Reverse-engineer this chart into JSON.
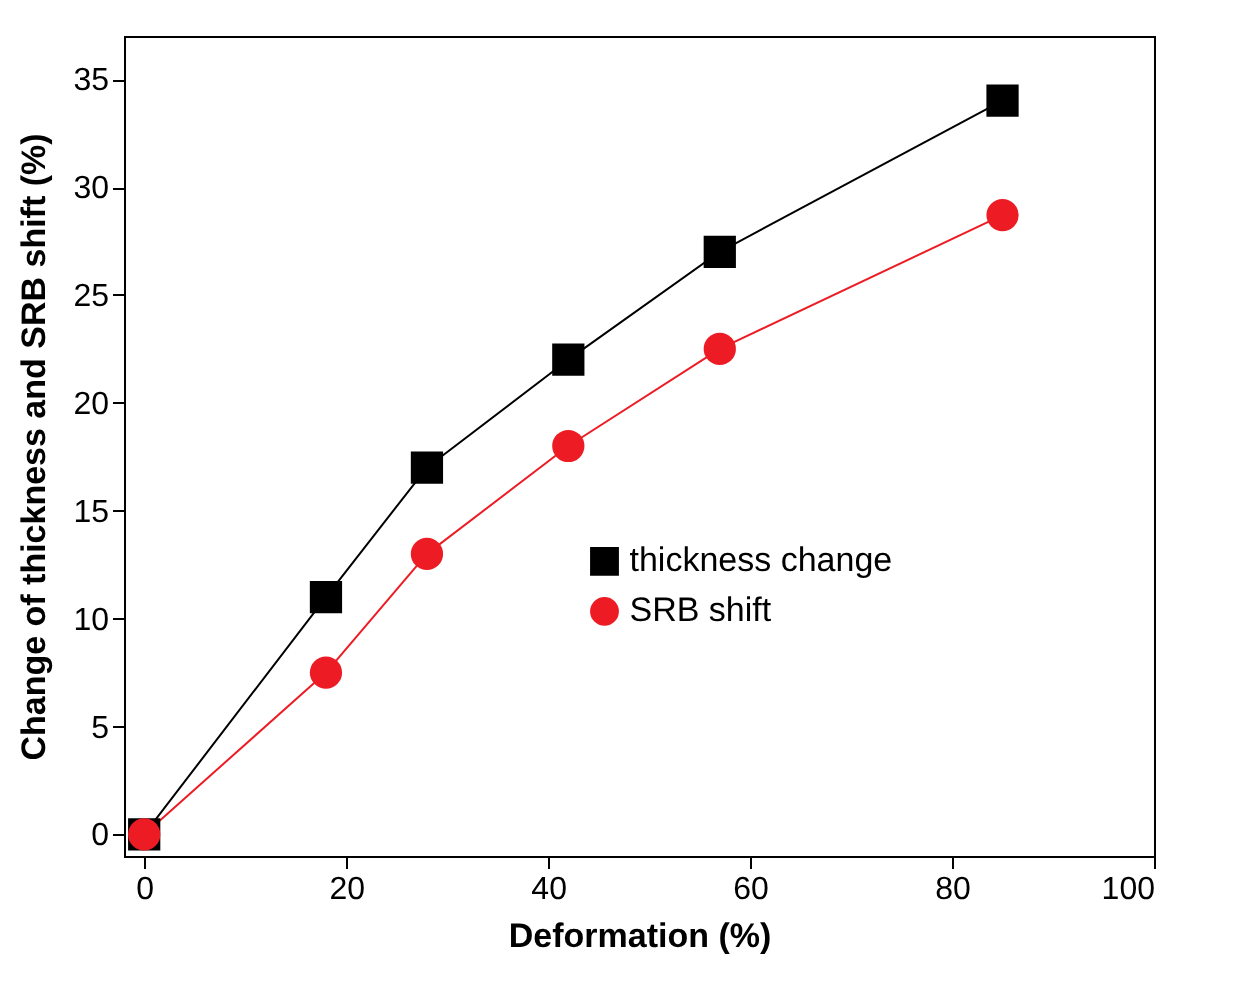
{
  "chart_data": {
    "type": "line",
    "xlabel": "Deformation (%)",
    "ylabel": "Change of thickness and SRB shift (%)",
    "xlim": [
      -2,
      100
    ],
    "xticks": [
      0,
      20,
      40,
      60,
      80,
      100
    ],
    "ylim": [
      -1,
      37
    ],
    "yticks": [
      0,
      5,
      10,
      15,
      20,
      25,
      30,
      35
    ],
    "x": [
      0,
      18,
      28,
      42,
      57,
      85
    ],
    "legend": "right",
    "grid": false,
    "line_style": "solid",
    "series": [
      {
        "name": "thickness change",
        "color": "#000000",
        "marker": "square",
        "values": [
          0,
          11,
          17,
          22,
          27,
          34
        ]
      },
      {
        "name": "SRB shift",
        "color": "#ed1c24",
        "marker": "circle",
        "values": [
          0,
          7.5,
          13,
          18,
          22.5,
          28.7
        ]
      }
    ]
  }
}
